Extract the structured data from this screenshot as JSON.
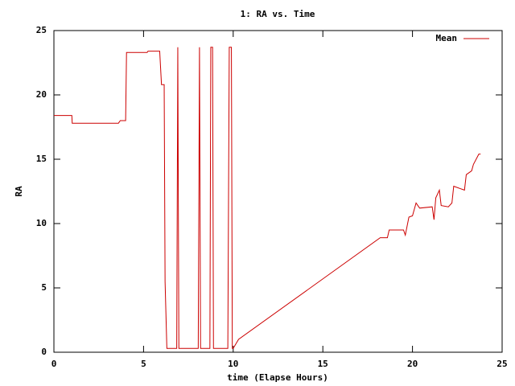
{
  "chart_data": {
    "type": "line",
    "title": "1: RA vs. Time",
    "x_label": "time (Elapse Hours)",
    "y_label": "RA",
    "x": [
      0,
      1,
      1.02,
      3.6,
      3.7,
      4.0,
      4.05,
      5.2,
      5.25,
      5.9,
      6.0,
      6.15,
      6.2,
      6.3,
      6.85,
      6.91,
      6.97,
      8.05,
      8.12,
      8.18,
      8.7,
      8.75,
      8.85,
      8.9,
      9.7,
      9.78,
      9.9,
      9.95,
      10.0,
      10.3,
      18.2,
      18.6,
      18.7,
      19.5,
      19.6,
      19.8,
      20.0,
      20.2,
      20.4,
      21.1,
      21.2,
      21.3,
      21.5,
      21.6,
      22.0,
      22.2,
      22.3,
      22.7,
      22.9,
      23.0,
      23.3,
      23.4,
      23.7,
      23.8
    ],
    "series": [
      {
        "name": "Mean",
        "color": "#cc0000",
        "values": [
          18.4,
          18.4,
          17.8,
          17.8,
          18.0,
          18.0,
          23.3,
          23.3,
          23.4,
          23.4,
          20.8,
          20.8,
          5.5,
          0.3,
          0.3,
          23.7,
          0.3,
          0.3,
          23.7,
          0.3,
          0.3,
          23.7,
          23.7,
          0.3,
          0.3,
          23.7,
          23.7,
          0.3,
          0.3,
          1.0,
          8.9,
          8.9,
          9.5,
          9.5,
          9.1,
          10.5,
          10.6,
          11.6,
          11.2,
          11.3,
          10.3,
          12.0,
          12.6,
          11.4,
          11.3,
          11.6,
          12.9,
          12.7,
          12.6,
          13.8,
          14.1,
          14.6,
          15.4,
          15.4
        ]
      }
    ],
    "xlim": [
      0,
      25
    ],
    "xticks": [
      0,
      5,
      10,
      15,
      20,
      25
    ],
    "ylim": [
      0,
      25
    ],
    "yticks": [
      0,
      5,
      10,
      15,
      20,
      25
    ],
    "grid": false,
    "legend": "top-right"
  }
}
